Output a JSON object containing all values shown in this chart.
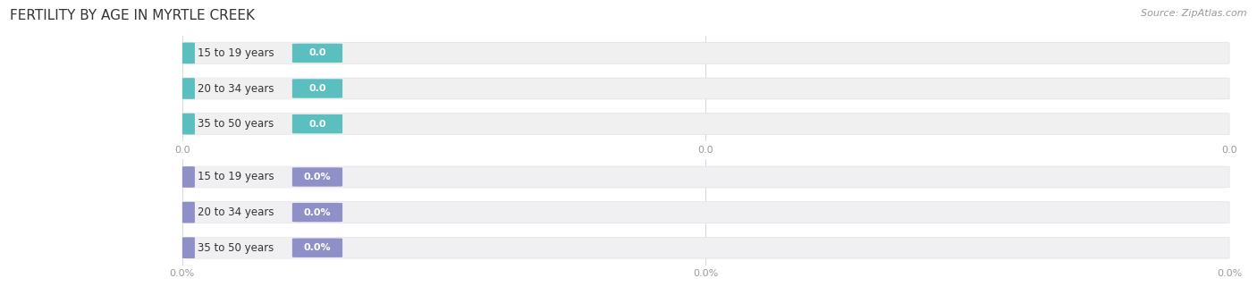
{
  "title": "FERTILITY BY AGE IN MYRTLE CREEK",
  "source": "Source: ZipAtlas.com",
  "top_group": {
    "labels": [
      "15 to 19 years",
      "20 to 34 years",
      "35 to 50 years"
    ],
    "values": [
      0.0,
      0.0,
      0.0
    ],
    "bar_bg_color": "#f0f0f0",
    "bar_stroke_color": "#e0e0e0",
    "left_circle_color": "#5bbfbf",
    "badge_color": "#5bbfbf",
    "label_color": "#333333",
    "value_color": "#ffffff",
    "value_suffix": "",
    "tick_suffix": "",
    "tick_values": [
      0.0,
      0.0,
      0.0
    ]
  },
  "bottom_group": {
    "labels": [
      "15 to 19 years",
      "20 to 34 years",
      "35 to 50 years"
    ],
    "values": [
      0.0,
      0.0,
      0.0
    ],
    "bar_bg_color": "#f0f0f2",
    "bar_stroke_color": "#e0e0e8",
    "left_circle_color": "#9090c8",
    "badge_color": "#9090c8",
    "label_color": "#333333",
    "value_color": "#ffffff",
    "value_suffix": "%",
    "tick_suffix": "%",
    "tick_values": [
      0.0,
      0.0,
      0.0
    ]
  },
  "bg_color": "#ffffff",
  "title_color": "#333333",
  "title_fontsize": 11,
  "source_fontsize": 8,
  "label_fontsize": 8.5,
  "value_fontsize": 8,
  "tick_fontsize": 8,
  "tick_color": "#999999",
  "figsize": [
    14.06,
    3.3
  ],
  "dpi": 100
}
